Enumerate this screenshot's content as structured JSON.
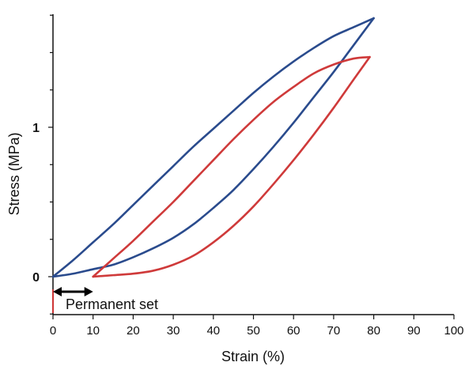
{
  "chart_data": {
    "type": "line",
    "title": "",
    "xlabel": "Strain (%)",
    "ylabel": "Stress (MPa)",
    "xlim": [
      0,
      100
    ],
    "ylim": [
      -0.25,
      1.8
    ],
    "xticks": [
      0,
      10,
      20,
      30,
      40,
      50,
      60,
      70,
      80,
      90,
      100
    ],
    "yticks": [
      0,
      1
    ],
    "grid": false,
    "series": [
      {
        "color": "#2a4b8d",
        "loading": {
          "x": [
            0,
            5,
            10,
            15,
            20,
            25,
            30,
            35,
            40,
            45,
            50,
            55,
            60,
            65,
            70,
            75,
            80
          ],
          "y": [
            0,
            0.11,
            0.23,
            0.35,
            0.48,
            0.61,
            0.74,
            0.87,
            0.99,
            1.11,
            1.23,
            1.34,
            1.44,
            1.53,
            1.61,
            1.67,
            1.73
          ]
        },
        "unloading": {
          "x": [
            80,
            75,
            70,
            65,
            60,
            55,
            50,
            45,
            40,
            35,
            30,
            25,
            20,
            15,
            10,
            5,
            0
          ],
          "y": [
            1.73,
            1.55,
            1.37,
            1.2,
            1.03,
            0.87,
            0.72,
            0.58,
            0.46,
            0.35,
            0.26,
            0.19,
            0.13,
            0.08,
            0.05,
            0.02,
            0
          ]
        }
      },
      {
        "color": "#cf3a3a",
        "loading": {
          "x": [
            10,
            15,
            20,
            25,
            30,
            35,
            40,
            45,
            50,
            55,
            60,
            65,
            70,
            75,
            79
          ],
          "y": [
            0,
            0.12,
            0.24,
            0.37,
            0.5,
            0.64,
            0.78,
            0.92,
            1.05,
            1.17,
            1.27,
            1.36,
            1.42,
            1.46,
            1.47
          ]
        },
        "unloading": {
          "x": [
            79,
            75,
            70,
            65,
            60,
            55,
            50,
            45,
            40,
            35,
            30,
            25,
            20,
            15,
            10
          ],
          "y": [
            1.47,
            1.32,
            1.13,
            0.95,
            0.78,
            0.62,
            0.47,
            0.34,
            0.23,
            0.14,
            0.08,
            0.04,
            0.02,
            0.01,
            0
          ]
        }
      }
    ],
    "annotations": [
      {
        "text": "Permanent set",
        "arrow_from_x": 0,
        "arrow_to_x": 10
      }
    ]
  }
}
